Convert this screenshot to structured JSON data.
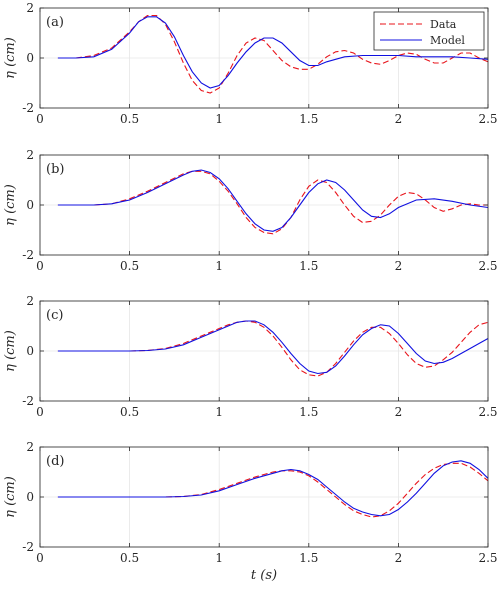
{
  "chart_data": [
    {
      "type": "line",
      "panel_label": "(a)",
      "xlim": [
        0,
        2.5
      ],
      "ylim": [
        -2,
        2
      ],
      "xticks": [
        0,
        0.5,
        1,
        1.5,
        2,
        2.5
      ],
      "xtick_labels": [
        "0",
        "0.5",
        "1",
        "1.5",
        "2",
        "2.5"
      ],
      "yticks": [
        -2,
        0,
        2
      ],
      "ytick_labels": [
        "-2",
        "0",
        "2"
      ],
      "ylabel": "η (cm)",
      "xlabel": "",
      "grid": true,
      "legend": "top-right",
      "series": [
        {
          "name": "Data",
          "color": "#e8141b",
          "dash": "dashed",
          "x": [
            0.1,
            0.2,
            0.3,
            0.4,
            0.5,
            0.55,
            0.6,
            0.65,
            0.7,
            0.75,
            0.8,
            0.85,
            0.9,
            0.95,
            1.0,
            1.05,
            1.1,
            1.15,
            1.2,
            1.25,
            1.3,
            1.35,
            1.4,
            1.45,
            1.5,
            1.55,
            1.6,
            1.65,
            1.7,
            1.75,
            1.8,
            1.85,
            1.9,
            1.95,
            2.0,
            2.05,
            2.1,
            2.15,
            2.2,
            2.25,
            2.3,
            2.35,
            2.4,
            2.45,
            2.5
          ],
          "y": [
            0,
            0,
            0.1,
            0.4,
            1.05,
            1.45,
            1.7,
            1.7,
            1.35,
            0.65,
            -0.2,
            -0.9,
            -1.3,
            -1.4,
            -1.2,
            -0.6,
            0.1,
            0.6,
            0.8,
            0.7,
            0.3,
            -0.1,
            -0.35,
            -0.45,
            -0.45,
            -0.25,
            0.05,
            0.25,
            0.3,
            0.2,
            -0.05,
            -0.2,
            -0.25,
            -0.1,
            0.1,
            0.2,
            0.15,
            -0.05,
            -0.2,
            -0.2,
            0,
            0.2,
            0.2,
            0,
            -0.15
          ]
        },
        {
          "name": "Model",
          "color": "#1010e0",
          "dash": "solid",
          "x": [
            0.1,
            0.2,
            0.3,
            0.4,
            0.5,
            0.55,
            0.6,
            0.65,
            0.7,
            0.75,
            0.8,
            0.85,
            0.9,
            0.95,
            1.0,
            1.05,
            1.1,
            1.15,
            1.2,
            1.25,
            1.3,
            1.35,
            1.4,
            1.45,
            1.5,
            1.55,
            1.6,
            1.7,
            1.8,
            1.9,
            2.0,
            2.1,
            2.2,
            2.3,
            2.4,
            2.5
          ],
          "y": [
            0,
            0,
            0.05,
            0.35,
            1.0,
            1.45,
            1.65,
            1.65,
            1.4,
            0.85,
            0.1,
            -0.55,
            -1.0,
            -1.2,
            -1.1,
            -0.7,
            -0.2,
            0.25,
            0.6,
            0.8,
            0.8,
            0.6,
            0.25,
            -0.1,
            -0.3,
            -0.3,
            -0.15,
            0.05,
            0.1,
            0.1,
            0.1,
            0.05,
            0.05,
            0.05,
            0,
            -0.05
          ]
        }
      ]
    },
    {
      "type": "line",
      "panel_label": "(b)",
      "xlim": [
        0,
        2.5
      ],
      "ylim": [
        -2,
        2
      ],
      "xticks": [
        0,
        0.5,
        1,
        1.5,
        2,
        2.5
      ],
      "xtick_labels": [
        "0",
        "0.5",
        "1",
        "1.5",
        "2",
        "2.5"
      ],
      "yticks": [
        -2,
        0,
        2
      ],
      "ytick_labels": [
        "-2",
        "0",
        "2"
      ],
      "ylabel": "η (cm)",
      "xlabel": "",
      "grid": true,
      "series": [
        {
          "name": "Data",
          "color": "#e8141b",
          "dash": "dashed",
          "x": [
            0.1,
            0.2,
            0.3,
            0.4,
            0.5,
            0.6,
            0.7,
            0.8,
            0.85,
            0.9,
            0.95,
            1.0,
            1.05,
            1.1,
            1.15,
            1.2,
            1.25,
            1.3,
            1.35,
            1.4,
            1.45,
            1.5,
            1.55,
            1.6,
            1.65,
            1.7,
            1.75,
            1.8,
            1.85,
            1.9,
            1.95,
            2.0,
            2.05,
            2.1,
            2.15,
            2.2,
            2.25,
            2.3,
            2.35,
            2.4,
            2.45,
            2.5
          ],
          "y": [
            0,
            0,
            0,
            0.05,
            0.25,
            0.55,
            0.9,
            1.25,
            1.35,
            1.35,
            1.25,
            0.95,
            0.55,
            0.05,
            -0.5,
            -0.9,
            -1.1,
            -1.15,
            -0.95,
            -0.5,
            0.2,
            0.75,
            1.0,
            0.9,
            0.5,
            0,
            -0.45,
            -0.7,
            -0.65,
            -0.4,
            0,
            0.35,
            0.5,
            0.45,
            0.2,
            -0.1,
            -0.25,
            -0.15,
            0,
            0.05,
            0,
            0
          ]
        },
        {
          "name": "Model",
          "color": "#1010e0",
          "dash": "solid",
          "x": [
            0.1,
            0.2,
            0.3,
            0.4,
            0.5,
            0.6,
            0.7,
            0.8,
            0.85,
            0.9,
            0.95,
            1.0,
            1.05,
            1.1,
            1.15,
            1.2,
            1.25,
            1.3,
            1.35,
            1.4,
            1.45,
            1.5,
            1.55,
            1.6,
            1.65,
            1.7,
            1.75,
            1.8,
            1.85,
            1.9,
            1.95,
            2.0,
            2.1,
            2.2,
            2.3,
            2.4,
            2.5
          ],
          "y": [
            0,
            0,
            0,
            0.05,
            0.2,
            0.5,
            0.85,
            1.2,
            1.35,
            1.4,
            1.3,
            1.05,
            0.65,
            0.15,
            -0.35,
            -0.75,
            -1.0,
            -1.05,
            -0.9,
            -0.5,
            0,
            0.5,
            0.85,
            1.0,
            0.9,
            0.6,
            0.2,
            -0.2,
            -0.45,
            -0.5,
            -0.35,
            -0.1,
            0.2,
            0.25,
            0.15,
            0,
            -0.1
          ]
        }
      ]
    },
    {
      "type": "line",
      "panel_label": "(c)",
      "xlim": [
        0,
        2.5
      ],
      "ylim": [
        -2,
        2
      ],
      "xticks": [
        0,
        0.5,
        1,
        1.5,
        2,
        2.5
      ],
      "xtick_labels": [
        "0",
        "0.5",
        "1",
        "1.5",
        "2",
        "2.5"
      ],
      "yticks": [
        -2,
        0,
        2
      ],
      "ytick_labels": [
        "-2",
        "0",
        "2"
      ],
      "ylabel": "η (cm)",
      "xlabel": "",
      "grid": true,
      "series": [
        {
          "name": "Data",
          "color": "#e8141b",
          "dash": "dashed",
          "x": [
            0.1,
            0.2,
            0.3,
            0.4,
            0.5,
            0.6,
            0.7,
            0.8,
            0.9,
            1.0,
            1.05,
            1.1,
            1.15,
            1.2,
            1.25,
            1.3,
            1.35,
            1.4,
            1.45,
            1.5,
            1.55,
            1.6,
            1.65,
            1.7,
            1.75,
            1.8,
            1.85,
            1.9,
            1.95,
            2.0,
            2.05,
            2.1,
            2.15,
            2.2,
            2.25,
            2.3,
            2.35,
            2.4,
            2.45,
            2.5
          ],
          "y": [
            0,
            0,
            0,
            0,
            0,
            0.02,
            0.1,
            0.3,
            0.6,
            0.9,
            1.05,
            1.15,
            1.2,
            1.15,
            0.95,
            0.6,
            0.15,
            -0.35,
            -0.75,
            -0.95,
            -1.0,
            -0.85,
            -0.5,
            -0.05,
            0.4,
            0.75,
            0.95,
            0.95,
            0.7,
            0.3,
            -0.15,
            -0.5,
            -0.65,
            -0.6,
            -0.35,
            -0.05,
            0.35,
            0.75,
            1.05,
            1.15
          ]
        },
        {
          "name": "Model",
          "color": "#1010e0",
          "dash": "solid",
          "x": [
            0.1,
            0.2,
            0.3,
            0.4,
            0.5,
            0.6,
            0.7,
            0.8,
            0.9,
            1.0,
            1.05,
            1.1,
            1.15,
            1.2,
            1.25,
            1.3,
            1.35,
            1.4,
            1.45,
            1.5,
            1.55,
            1.6,
            1.65,
            1.7,
            1.75,
            1.8,
            1.85,
            1.9,
            1.95,
            2.0,
            2.05,
            2.1,
            2.15,
            2.2,
            2.25,
            2.3,
            2.35,
            2.4,
            2.45,
            2.5
          ],
          "y": [
            0,
            0,
            0,
            0,
            0,
            0.02,
            0.08,
            0.25,
            0.55,
            0.85,
            1.0,
            1.15,
            1.2,
            1.2,
            1.05,
            0.75,
            0.35,
            -0.1,
            -0.5,
            -0.8,
            -0.9,
            -0.85,
            -0.6,
            -0.2,
            0.25,
            0.65,
            0.9,
            1.05,
            1.0,
            0.7,
            0.3,
            -0.1,
            -0.4,
            -0.5,
            -0.45,
            -0.3,
            -0.1,
            0.1,
            0.3,
            0.5
          ]
        }
      ]
    },
    {
      "type": "line",
      "panel_label": "(d)",
      "xlim": [
        0,
        2.5
      ],
      "ylim": [
        -2,
        2
      ],
      "xticks": [
        0,
        0.5,
        1,
        1.5,
        2,
        2.5
      ],
      "xtick_labels": [
        "0",
        "0.5",
        "1",
        "1.5",
        "2",
        "2.5"
      ],
      "yticks": [
        -2,
        0,
        2
      ],
      "ytick_labels": [
        "-2",
        "0",
        "2"
      ],
      "ylabel": "η (cm)",
      "xlabel": "t (s)",
      "grid": true,
      "series": [
        {
          "name": "Data",
          "color": "#e8141b",
          "dash": "dashed",
          "x": [
            0.1,
            0.2,
            0.3,
            0.4,
            0.5,
            0.6,
            0.7,
            0.8,
            0.9,
            1.0,
            1.1,
            1.2,
            1.3,
            1.35,
            1.4,
            1.45,
            1.5,
            1.55,
            1.6,
            1.65,
            1.7,
            1.75,
            1.8,
            1.85,
            1.9,
            1.95,
            2.0,
            2.05,
            2.1,
            2.15,
            2.2,
            2.25,
            2.3,
            2.35,
            2.4,
            2.45,
            2.5
          ],
          "y": [
            0,
            0,
            0,
            0,
            0,
            0,
            0,
            0.02,
            0.1,
            0.3,
            0.55,
            0.8,
            1.0,
            1.05,
            1.05,
            1.0,
            0.85,
            0.6,
            0.3,
            0,
            -0.3,
            -0.55,
            -0.7,
            -0.8,
            -0.75,
            -0.55,
            -0.25,
            0.15,
            0.55,
            0.9,
            1.15,
            1.3,
            1.35,
            1.35,
            1.2,
            0.95,
            0.65
          ]
        },
        {
          "name": "Model",
          "color": "#1010e0",
          "dash": "solid",
          "x": [
            0.1,
            0.2,
            0.3,
            0.4,
            0.5,
            0.6,
            0.7,
            0.8,
            0.9,
            1.0,
            1.1,
            1.2,
            1.3,
            1.35,
            1.4,
            1.45,
            1.5,
            1.55,
            1.6,
            1.65,
            1.7,
            1.75,
            1.8,
            1.85,
            1.9,
            1.95,
            2.0,
            2.05,
            2.1,
            2.15,
            2.2,
            2.25,
            2.3,
            2.35,
            2.4,
            2.45,
            2.5
          ],
          "y": [
            0,
            0,
            0,
            0,
            0,
            0,
            0,
            0.02,
            0.08,
            0.25,
            0.5,
            0.75,
            0.95,
            1.05,
            1.1,
            1.05,
            0.9,
            0.7,
            0.4,
            0.1,
            -0.2,
            -0.45,
            -0.6,
            -0.7,
            -0.75,
            -0.7,
            -0.5,
            -0.2,
            0.15,
            0.55,
            0.95,
            1.25,
            1.4,
            1.45,
            1.35,
            1.1,
            0.75
          ]
        }
      ]
    }
  ]
}
